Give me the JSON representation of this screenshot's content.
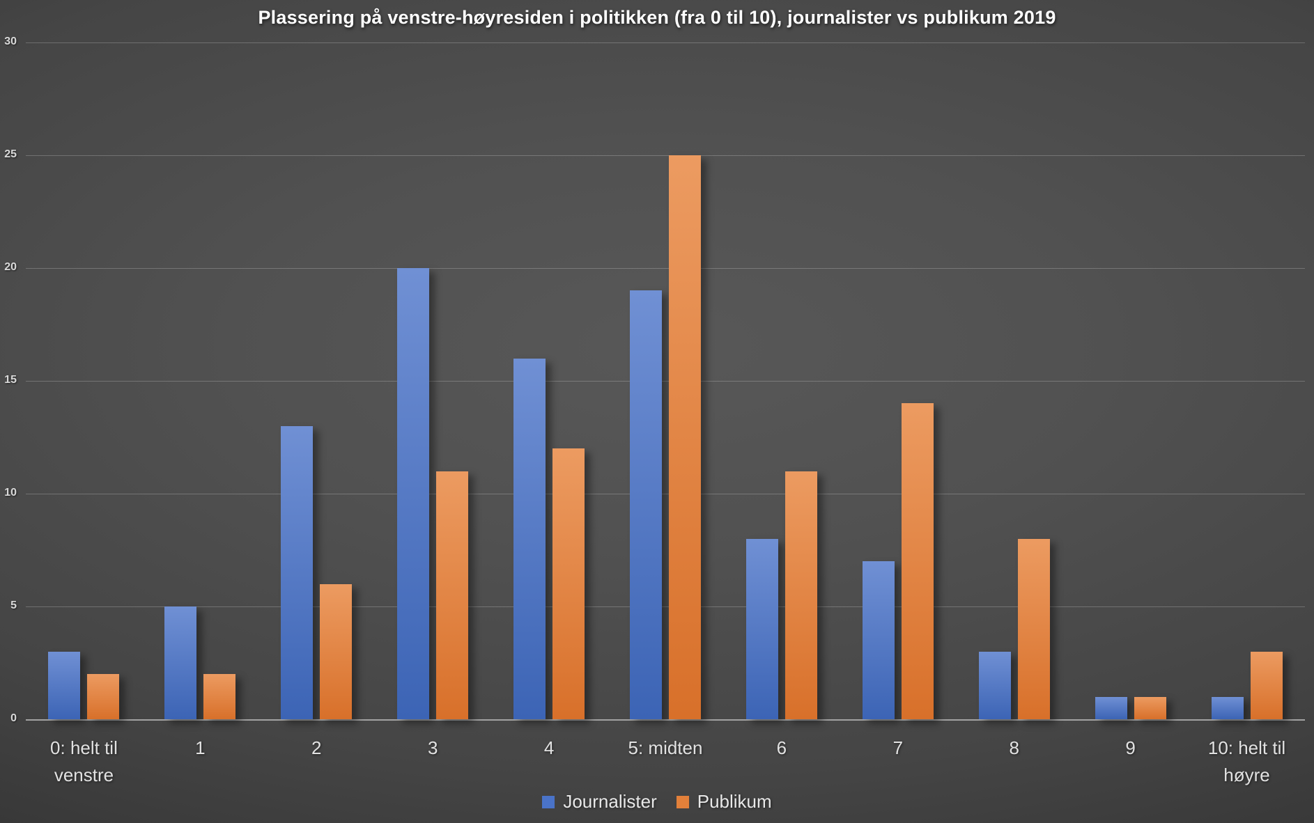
{
  "chart_data": {
    "type": "bar",
    "title": "Plassering på venstre-høyresiden i politikken (fra 0 til 10), journalister vs publikum 2019",
    "categories": [
      "0: helt til venstre",
      "1",
      "2",
      "3",
      "4",
      "5: midten",
      "6",
      "7",
      "8",
      "9",
      "10: helt til høyre"
    ],
    "series": [
      {
        "name": "Journalister",
        "color": "#4a73c8",
        "values": [
          3,
          5,
          13,
          20,
          16,
          19,
          8,
          7,
          3,
          1,
          1
        ]
      },
      {
        "name": "Publikum",
        "color": "#e2803a",
        "values": [
          2,
          2,
          6,
          11,
          12,
          25,
          11,
          14,
          8,
          1,
          3
        ]
      }
    ],
    "xlabel": "",
    "ylabel": "",
    "ylim": [
      0,
      30
    ],
    "yticks": [
      0,
      5,
      10,
      15,
      20,
      25,
      30
    ],
    "grid": true,
    "legend_position": "bottom",
    "background": "dark-gray-gradient"
  },
  "colors": {
    "series_blue": "#4a73c8",
    "series_orange": "#e2803a",
    "title_text": "#ffffff",
    "axis_text": "#d9d9d9",
    "gridline": "rgba(255,255,255,0.22)",
    "axis_line": "#a3a3a3"
  }
}
